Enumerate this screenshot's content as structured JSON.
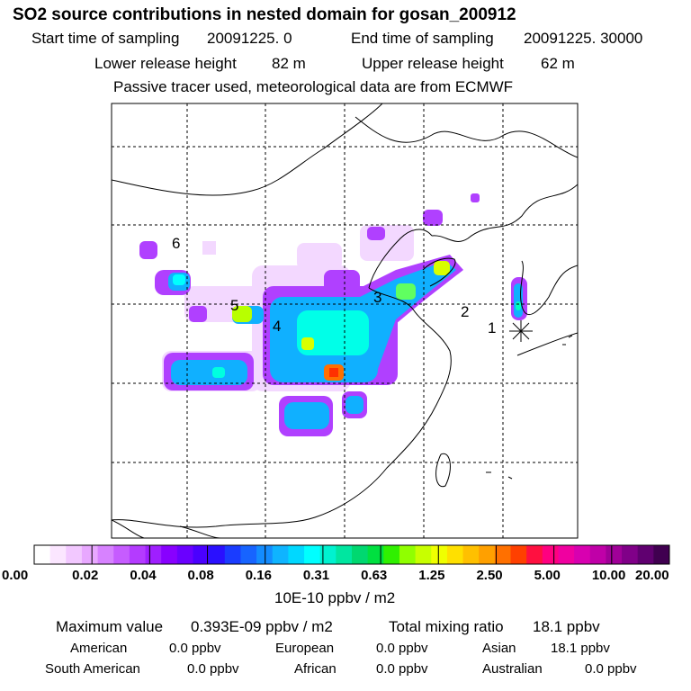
{
  "title": "SO2 source contributions in nested domain for gosan_200912",
  "header": {
    "start_label": "Start time of sampling",
    "start_value": "20091225.     0",
    "end_label": "End time of sampling",
    "end_value": "20091225. 30000",
    "lower_label": "Lower release height",
    "lower_value": "82 m",
    "upper_label": "Upper release height",
    "upper_value": "62 m",
    "note": "Passive tracer used, meteorological data are from ECMWF"
  },
  "map": {
    "region_labels": [
      "1",
      "2",
      "3",
      "4",
      "5",
      "6"
    ],
    "receptor_icon": "star-marker-icon"
  },
  "colorbar": {
    "ticks": [
      "0.00",
      "0.02",
      "0.04",
      "0.08",
      "0.16",
      "0.31",
      "0.63",
      "1.25",
      "2.50",
      "5.00",
      "10.00",
      "20.00"
    ],
    "unit": "10E-10 ppbv / m2",
    "colors": [
      "#ffffff",
      "#fbe6ff",
      "#f2c8ff",
      "#e8a8ff",
      "#d782ff",
      "#c65cff",
      "#b43bff",
      "#9f1fff",
      "#8800ff",
      "#6a00ff",
      "#4a00ff",
      "#2a10ff",
      "#1a3cff",
      "#1764ff",
      "#138cff",
      "#0fb4ff",
      "#00d8ff",
      "#00ffff",
      "#00f2d0",
      "#00e6a0",
      "#00d870",
      "#00e040",
      "#30f000",
      "#90ff00",
      "#c8ff00",
      "#f0ff00",
      "#ffe000",
      "#ffc000",
      "#ffa000",
      "#ff7000",
      "#ff4000",
      "#ff1040",
      "#ff0080",
      "#f000a0",
      "#d800b0",
      "#c000a8",
      "#a00098",
      "#800088",
      "#600070",
      "#400050"
    ]
  },
  "footer": {
    "max_label": "Maximum value",
    "max_value": "0.393E-09 ppbv / m2",
    "total_label": "Total mixing ratio",
    "total_value": "18.1 ppbv",
    "regions": [
      {
        "name": "American",
        "value": "0.0 ppbv"
      },
      {
        "name": "European",
        "value": "0.0 ppbv"
      },
      {
        "name": "Asian",
        "value": "18.1 ppbv"
      },
      {
        "name": "South American",
        "value": "0.0 ppbv"
      },
      {
        "name": "African",
        "value": "0.0 ppbv"
      },
      {
        "name": "Australian",
        "value": "0.0 ppbv"
      }
    ]
  }
}
